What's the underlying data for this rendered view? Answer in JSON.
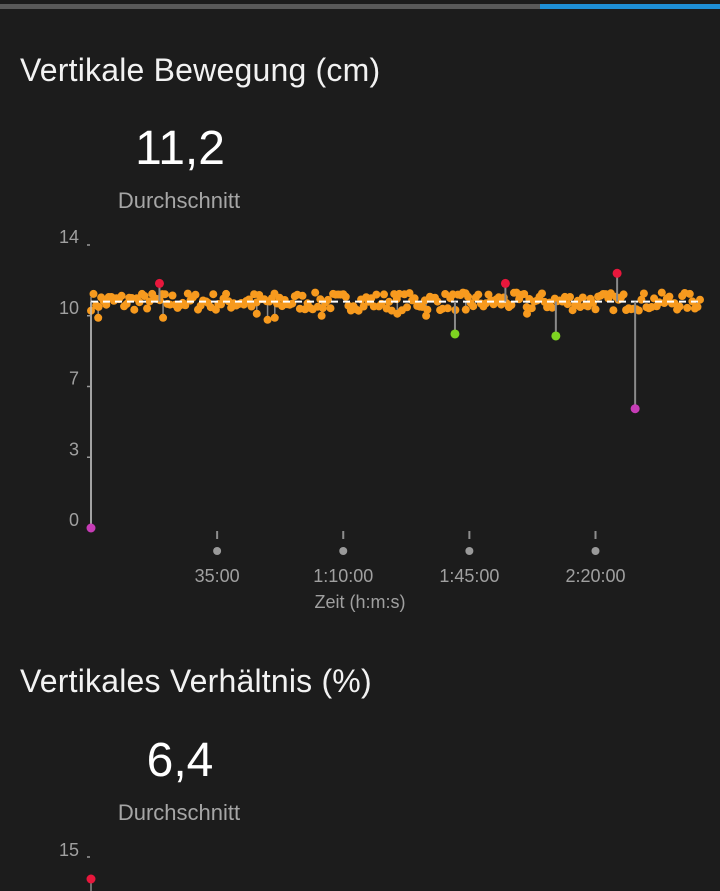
{
  "colors": {
    "background": "#1c1c1c",
    "progress_track": "#595959",
    "progress_active": "#1e8fd6",
    "series": "#f79a1e",
    "average_line": "#ffffff",
    "stem": "#8a8a8a",
    "high_marker": "#e8173c",
    "low_marker_green": "#7ed321",
    "low_marker_magenta": "#c63cb6"
  },
  "section1": {
    "title": "Vertikale Bewegung (cm)",
    "value": "11,2",
    "value_label": "Durchschnitt"
  },
  "section2": {
    "title": "Vertikales Verhältnis (%)",
    "value": "6,4",
    "value_label": "Durchschnitt"
  },
  "chart_data": [
    {
      "type": "scatter",
      "xlabel": "Zeit (h:m:s)",
      "ylabel": "",
      "y_tick_labels": [
        "14",
        "10",
        "7",
        "3",
        "0"
      ],
      "y_tick_values": [
        14,
        10.5,
        7,
        3.5,
        0
      ],
      "ylim": [
        0,
        14
      ],
      "x_tick_labels": [
        "35:00",
        "1:10:00",
        "1:45:00",
        "2:20:00"
      ],
      "x_tick_values_min": [
        35,
        70,
        105,
        140
      ],
      "xlim_min": [
        0,
        169
      ],
      "average": 11.2,
      "series": [
        {
          "baseline": 11.2,
          "spread": 0.45,
          "count": 240
        }
      ],
      "highlights": [
        {
          "x_min": 0,
          "y": 0,
          "kind": "low-magenta"
        },
        {
          "x_min": 19,
          "y": 12.1,
          "kind": "high"
        },
        {
          "x_min": 101,
          "y": 9.6,
          "kind": "low-green"
        },
        {
          "x_min": 115,
          "y": 12.1,
          "kind": "high"
        },
        {
          "x_min": 129,
          "y": 9.5,
          "kind": "low-green"
        },
        {
          "x_min": 146,
          "y": 12.6,
          "kind": "high"
        },
        {
          "x_min": 151,
          "y": 5.9,
          "kind": "low-magenta"
        }
      ],
      "dips": [
        {
          "x_min": 2,
          "y": 10.4
        },
        {
          "x_min": 20,
          "y": 10.4
        },
        {
          "x_min": 32,
          "y": 11.2
        },
        {
          "x_min": 46,
          "y": 10.6
        },
        {
          "x_min": 49,
          "y": 10.3
        },
        {
          "x_min": 51,
          "y": 10.4
        },
        {
          "x_min": 64,
          "y": 10.5
        },
        {
          "x_min": 85,
          "y": 10.6
        },
        {
          "x_min": 93,
          "y": 10.5
        },
        {
          "x_min": 104,
          "y": 10.8
        },
        {
          "x_min": 121,
          "y": 10.6
        }
      ]
    },
    {
      "type": "scatter",
      "xlabel": "",
      "ylabel": "",
      "y_tick_labels": [
        "15"
      ],
      "y_tick_values": [
        15
      ],
      "ylim": [
        0,
        15
      ],
      "highlights": [
        {
          "x_min": 0,
          "y": 14.1,
          "kind": "high"
        }
      ]
    }
  ]
}
